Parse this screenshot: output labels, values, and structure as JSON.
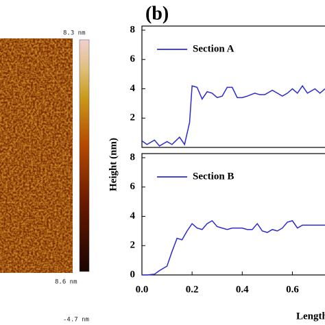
{
  "figure": {
    "panel_label": "(b)",
    "y_label": "Height (nm)",
    "x_label": "Length",
    "colorbar_max": "8.3 nm",
    "colorbar_min": "-4.7 nm",
    "scale_label": "8.6 nm"
  },
  "chart_data": [
    {
      "type": "line",
      "xlim": [
        0,
        0.73
      ],
      "ylim": [
        0,
        8
      ],
      "yticks": [
        2,
        4,
        6,
        8
      ],
      "legend": "top-left",
      "x": [
        0,
        0.02,
        0.05,
        0.07,
        0.1,
        0.12,
        0.15,
        0.17,
        0.19,
        0.2,
        0.22,
        0.24,
        0.26,
        0.28,
        0.3,
        0.32,
        0.34,
        0.36,
        0.38,
        0.4,
        0.42,
        0.45,
        0.47,
        0.49,
        0.52,
        0.54,
        0.56,
        0.58,
        0.6,
        0.62,
        0.64,
        0.66,
        0.69,
        0.71,
        0.73
      ],
      "series": [
        {
          "name": "Section A",
          "color": "#2a2ad0",
          "values": [
            0.45,
            0.2,
            0.5,
            0.1,
            0.4,
            0.2,
            0.7,
            0.2,
            1.7,
            4.2,
            4.1,
            3.3,
            3.8,
            3.7,
            3.4,
            3.5,
            4.1,
            4.1,
            3.4,
            3.4,
            3.5,
            3.7,
            3.6,
            3.6,
            3.9,
            3.7,
            3.5,
            3.7,
            4.0,
            3.7,
            4.2,
            3.7,
            4.0,
            3.7,
            4.0
          ]
        }
      ]
    },
    {
      "type": "line",
      "xlim": [
        0,
        0.73
      ],
      "ylim": [
        0,
        8
      ],
      "yticks": [
        0,
        2,
        4,
        6,
        8
      ],
      "legend": "top-left",
      "xticks": [
        {
          "value": 0,
          "label": "0.0"
        },
        0.2,
        0.4,
        0.6
      ],
      "x": [
        0,
        0.02,
        0.05,
        0.07,
        0.1,
        0.12,
        0.14,
        0.16,
        0.18,
        0.2,
        0.22,
        0.24,
        0.26,
        0.28,
        0.3,
        0.32,
        0.34,
        0.36,
        0.38,
        0.4,
        0.42,
        0.44,
        0.46,
        0.48,
        0.5,
        0.52,
        0.54,
        0.56,
        0.58,
        0.6,
        0.62,
        0.64,
        0.66,
        0.7,
        0.73
      ],
      "series": [
        {
          "name": "Section B",
          "color": "#2a2ad0",
          "values": [
            0,
            0,
            0.05,
            0.3,
            0.6,
            1.6,
            2.5,
            2.4,
            3.0,
            3.5,
            3.2,
            3.1,
            3.5,
            3.7,
            3.3,
            3.2,
            3.1,
            3.2,
            3.2,
            3.2,
            3.1,
            3.1,
            3.5,
            3.0,
            2.9,
            3.1,
            3.0,
            3.2,
            3.6,
            3.7,
            3.2,
            3.4,
            3.4,
            3.4,
            3.4
          ]
        }
      ]
    }
  ]
}
